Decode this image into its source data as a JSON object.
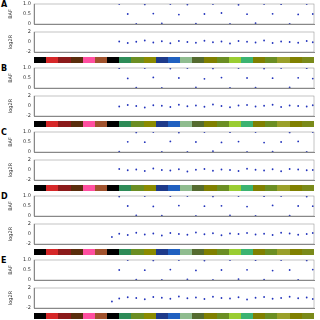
{
  "chart_data": [
    {
      "type": "scatter",
      "title": "A",
      "ylabel": "BAF",
      "x": [
        7.0,
        7.7,
        8.4,
        9.1,
        9.8,
        10.5,
        11.2,
        11.9,
        12.6,
        13.3,
        14.0,
        14.7,
        15.4,
        16.1,
        16.8,
        17.5,
        18.2,
        18.9,
        19.6,
        20.3,
        21.0,
        21.7,
        22.4,
        22.9
      ],
      "values": [
        1,
        0.5,
        0,
        0.98,
        0.52,
        0.03,
        1,
        0.47,
        0.97,
        0.02,
        0.5,
        1,
        0.55,
        0,
        0.96,
        0.49,
        0.04,
        1,
        0.51,
        0.99,
        0.01,
        0.48,
        1,
        0.5
      ],
      "xlim": [
        0,
        23
      ],
      "ylim": [
        0,
        1
      ],
      "yticks": [
        0,
        0.5,
        1
      ],
      "color": "#2233bb",
      "tick_labels": "y",
      "grid": false
    },
    {
      "type": "scatter",
      "ylabel": "log2R",
      "x": [
        7.0,
        7.7,
        8.4,
        9.1,
        9.8,
        10.5,
        11.2,
        11.9,
        12.6,
        13.3,
        14.0,
        14.7,
        15.4,
        16.1,
        16.8,
        17.5,
        18.2,
        18.9,
        19.6,
        20.3,
        21.0,
        21.7,
        22.4,
        22.9
      ],
      "values": [
        0.1,
        -0.2,
        0.05,
        0.3,
        -0.1,
        0.15,
        -0.25,
        0.2,
        0,
        -0.15,
        0.25,
        -0.05,
        0.1,
        -0.3,
        0.2,
        0.05,
        -0.1,
        0.3,
        -0.2,
        0.1,
        0,
        -0.15,
        0.2,
        -0.05
      ],
      "xlim": [
        0,
        23
      ],
      "ylim": [
        -2,
        2
      ],
      "yticks": [
        -2,
        0,
        2
      ],
      "color": "#2233bb",
      "tick_labels": "y",
      "grid": false
    },
    {
      "type": "scatter",
      "title": "B",
      "ylabel": "BAF",
      "x": [
        7.0,
        7.7,
        8.4,
        9.1,
        9.8,
        10.5,
        11.2,
        11.9,
        12.6,
        13.3,
        14.0,
        14.7,
        15.4,
        16.1,
        16.8,
        17.5,
        18.2,
        18.9,
        19.6,
        20.3,
        21.0,
        21.7,
        22.4,
        22.9
      ],
      "values": [
        0.99,
        0.48,
        0.02,
        1,
        0.53,
        0,
        0.97,
        0.5,
        1,
        0.03,
        0.46,
        0.98,
        0.52,
        0.01,
        1,
        0.5,
        0.02,
        0.97,
        0.49,
        1,
        0.03,
        0.51,
        0.99,
        0.47
      ],
      "xlim": [
        0,
        23
      ],
      "ylim": [
        0,
        1
      ],
      "yticks": [
        0,
        0.5,
        1
      ],
      "color": "#2233bb",
      "tick_labels": "y",
      "grid": false
    },
    {
      "type": "scatter",
      "ylabel": "log2R",
      "x": [
        7.0,
        7.7,
        8.4,
        9.1,
        9.8,
        10.5,
        11.2,
        11.9,
        12.6,
        13.3,
        14.0,
        14.7,
        15.4,
        16.1,
        16.8,
        17.5,
        18.2,
        18.9,
        19.6,
        20.3,
        21.0,
        21.7,
        22.4,
        22.9
      ],
      "values": [
        -0.1,
        0.2,
        0,
        -0.3,
        0.15,
        0.05,
        -0.2,
        0.25,
        -0.05,
        0.1,
        -0.15,
        0.3,
        0,
        -0.25,
        0.1,
        0.2,
        -0.1,
        0.05,
        0.25,
        -0.2,
        0.1,
        0,
        -0.1,
        0.15
      ],
      "xlim": [
        0,
        23
      ],
      "ylim": [
        -2,
        2
      ],
      "yticks": [
        -2,
        0,
        2
      ],
      "color": "#2233bb",
      "tick_labels": "y",
      "grid": false
    },
    {
      "type": "scatter",
      "title": "C",
      "ylabel": "BAF",
      "x": [
        7.0,
        7.7,
        8.4,
        9.1,
        9.8,
        10.5,
        11.2,
        11.9,
        12.6,
        13.3,
        14.0,
        14.7,
        15.4,
        16.1,
        16.8,
        17.5,
        18.2,
        18.9,
        19.6,
        20.3,
        21.0,
        21.7,
        22.4,
        22.9
      ],
      "values": [
        0.02,
        0.51,
        0.98,
        0.49,
        1,
        0.01,
        0.53,
        0.97,
        0,
        0.5,
        1,
        0.04,
        0.48,
        0.99,
        0.52,
        0,
        1,
        0.47,
        0.02,
        0.5,
        0.98,
        0.53,
        0.01,
        1
      ],
      "xlim": [
        0,
        23
      ],
      "ylim": [
        0,
        1
      ],
      "yticks": [
        0,
        0.5,
        1
      ],
      "color": "#2233bb",
      "tick_labels": "y",
      "grid": false
    },
    {
      "type": "scatter",
      "ylabel": "log2R",
      "x": [
        7.0,
        7.7,
        8.4,
        9.1,
        9.8,
        10.5,
        11.2,
        11.9,
        12.6,
        13.3,
        14.0,
        14.7,
        15.4,
        16.1,
        16.8,
        17.5,
        18.2,
        18.9,
        19.6,
        20.3,
        21.0,
        21.7,
        22.4,
        22.9
      ],
      "values": [
        0.2,
        -0.05,
        0.1,
        -0.2,
        0.3,
        0,
        -0.1,
        0.15,
        -0.3,
        0.05,
        0.2,
        -0.15,
        0.1,
        0,
        -0.2,
        0.25,
        0.05,
        -0.1,
        0.15,
        -0.25,
        0.2,
        0.1,
        -0.05,
        0
      ],
      "xlim": [
        0,
        23
      ],
      "ylim": [
        -2,
        2
      ],
      "yticks": [
        -2,
        0,
        2
      ],
      "color": "#2233bb",
      "tick_labels": "y",
      "grid": false
    },
    {
      "type": "scatter",
      "title": "D",
      "ylabel": "BAF",
      "x": [
        6.4,
        7.0,
        7.7,
        8.4,
        9.1,
        9.8,
        10.5,
        11.2,
        11.9,
        12.6,
        13.3,
        14.0,
        14.7,
        15.4,
        16.1,
        16.8,
        17.5,
        18.2,
        18.9,
        19.6,
        20.3,
        21.0,
        21.7,
        22.4,
        22.9
      ],
      "values": [
        null,
        0.97,
        0.5,
        0.03,
        1,
        0.48,
        0.02,
        0.99,
        0.52,
        1,
        0,
        0.49,
        0.98,
        0.51,
        0.03,
        1,
        0.47,
        0.01,
        0.99,
        0.53,
        1,
        0.02,
        0.5,
        0.97,
        0.49
      ],
      "xlim": [
        0,
        23
      ],
      "ylim": [
        0,
        1
      ],
      "yticks": [
        0,
        0.5,
        1
      ],
      "color": "#2233bb",
      "tick_labels": "y",
      "grid": false
    },
    {
      "type": "scatter",
      "ylabel": "log2R",
      "x": [
        6.4,
        7.0,
        7.7,
        8.4,
        9.1,
        9.8,
        10.5,
        11.2,
        11.9,
        12.6,
        13.3,
        14.0,
        14.7,
        15.4,
        16.1,
        16.8,
        17.5,
        18.2,
        18.9,
        19.6,
        20.3,
        21.0,
        21.7,
        22.4,
        22.9
      ],
      "values": [
        -0.6,
        0.05,
        -0.2,
        0.25,
        -0.1,
        0.1,
        -0.3,
        0.2,
        0,
        -0.15,
        0.3,
        -0.05,
        0.15,
        -0.25,
        0.1,
        0,
        0.2,
        -0.1,
        0.05,
        -0.2,
        0.25,
        0.1,
        -0.15,
        0,
        0.2
      ],
      "xlim": [
        0,
        23
      ],
      "ylim": [
        -2,
        2
      ],
      "yticks": [
        -2,
        0,
        2
      ],
      "color": "#2233bb",
      "tick_labels": "y",
      "grid": false
    },
    {
      "type": "scatter",
      "title": "E",
      "ylabel": "BAF",
      "x": [
        6.4,
        7.0,
        7.7,
        8.4,
        9.1,
        9.8,
        10.5,
        11.2,
        11.9,
        12.6,
        13.3,
        14.0,
        14.7,
        15.4,
        16.1,
        16.8,
        17.5,
        18.2,
        18.9,
        19.6,
        20.3,
        21.0,
        21.7,
        22.4,
        22.9
      ],
      "values": [
        null,
        0.5,
        1,
        0.02,
        0.49,
        0.98,
        0.01,
        0.52,
        1,
        0.03,
        0.48,
        0.97,
        0,
        0.5,
        1,
        0.04,
        0.51,
        0.99,
        0.02,
        0.47,
        1,
        0.5,
        0.01,
        0.98,
        0.52
      ],
      "xlim": [
        0,
        23
      ],
      "ylim": [
        0,
        1
      ],
      "yticks": [
        0,
        0.5,
        1
      ],
      "color": "#2233bb",
      "tick_labels": "y",
      "grid": false
    },
    {
      "type": "scatter",
      "ylabel": "log2R",
      "x": [
        6.4,
        7.0,
        7.7,
        8.4,
        9.1,
        9.8,
        10.5,
        11.2,
        11.9,
        12.6,
        13.3,
        14.0,
        14.7,
        15.4,
        16.1,
        16.8,
        17.5,
        18.2,
        18.9,
        19.6,
        20.3,
        21.0,
        21.7,
        22.4,
        22.9
      ],
      "values": [
        -0.7,
        -0.1,
        0.15,
        0,
        -0.25,
        0.2,
        0.05,
        -0.15,
        0.3,
        -0.05,
        0.1,
        -0.2,
        0.25,
        0,
        -0.1,
        0.15,
        -0.3,
        0.05,
        0.2,
        -0.15,
        0,
        0.25,
        -0.05,
        0.1,
        -0.2
      ],
      "xlim": [
        0,
        23
      ],
      "ylim": [
        -2,
        2
      ],
      "yticks": [
        -2,
        0,
        2
      ],
      "color": "#2233bb",
      "tick_labels": "y",
      "grid": false
    }
  ],
  "chromosome_bar": {
    "colors": [
      "#000000",
      "#d62728",
      "#8b1a1a",
      "#5a2d0c",
      "#ff4fa0",
      "#a0522d",
      "#000000",
      "#2e8b57",
      "#6b8e23",
      "#8b8b00",
      "#1e3a8a",
      "#2060c0",
      "#8fbc8f",
      "#556b2f",
      "#808000",
      "#6b8e23",
      "#9acd32",
      "#3cb371",
      "#808000",
      "#6b8e23",
      "#9aa02a",
      "#808000",
      "#7a8a1a"
    ]
  }
}
